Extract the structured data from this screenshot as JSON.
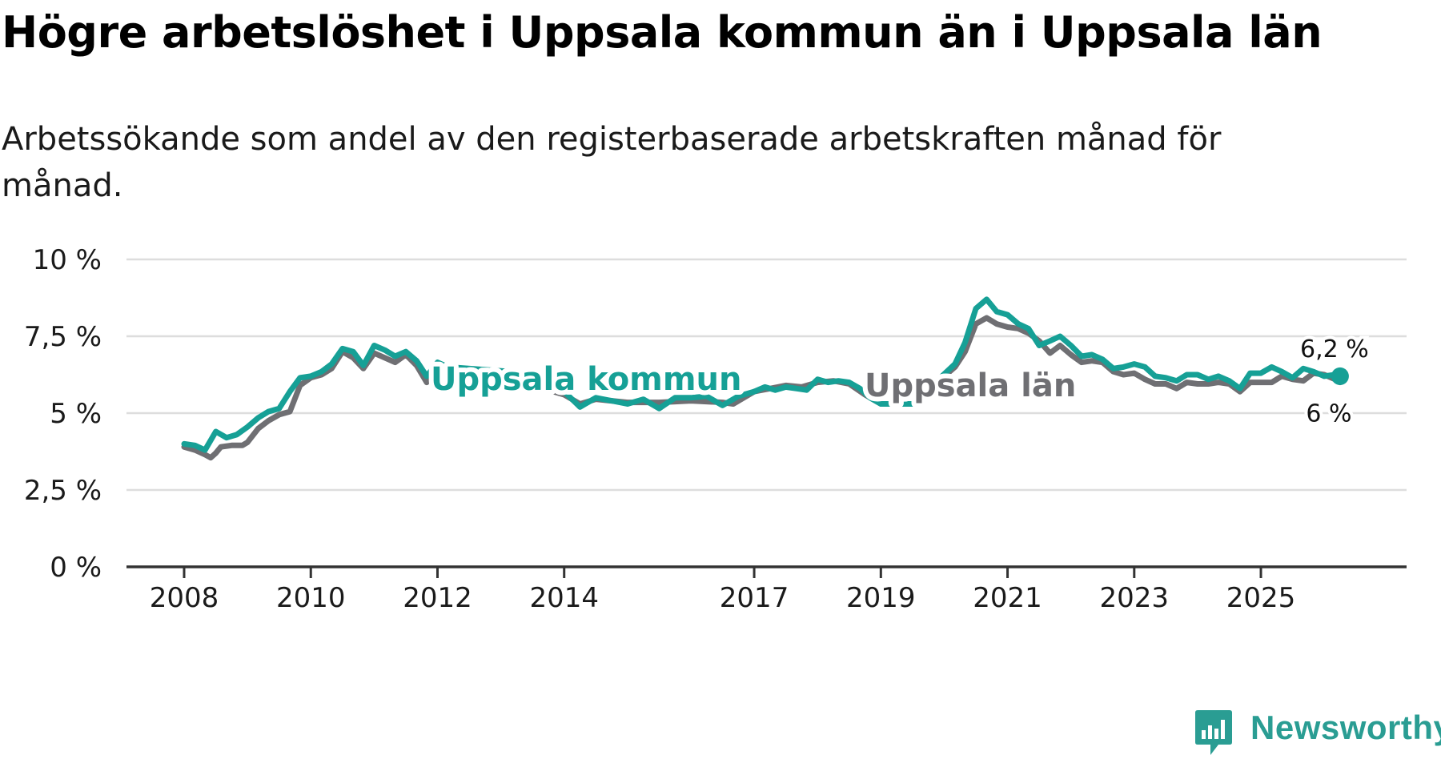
{
  "header": {
    "title": "Högre arbetslöshet i Uppsala kommun än i Uppsala län",
    "subtitle": "Arbetssökande som andel av den registerbaserade arbetskraften månad för månad."
  },
  "brand": {
    "name": "Newsworthy",
    "icon": "newsworthy-logo-icon"
  },
  "colors": {
    "kommun": "#16a096",
    "lan": "#6f6f73",
    "grid": "#dddddd",
    "axis": "#333333",
    "text": "#1a1a1a",
    "brand": "#2a9d93"
  },
  "chart_data": {
    "type": "line",
    "title": "Högre arbetslöshet i Uppsala kommun än i Uppsala län",
    "subtitle": "Arbetssökande som andel av den registerbaserade arbetskraften månad för månad.",
    "xlabel": "",
    "ylabel": "",
    "xlim": [
      2008.0,
      2026.75
    ],
    "ylim": [
      0,
      10
    ],
    "grid": true,
    "y_ticks": [
      {
        "value": 0,
        "label": "0 %"
      },
      {
        "value": 2.5,
        "label": "2,5 %"
      },
      {
        "value": 5,
        "label": "5 %"
      },
      {
        "value": 7.5,
        "label": "7,5 %"
      },
      {
        "value": 10,
        "label": "10 %"
      }
    ],
    "x_ticks": [
      {
        "value": 2008,
        "label": "2008"
      },
      {
        "value": 2010,
        "label": "2010"
      },
      {
        "value": 2012,
        "label": "2012"
      },
      {
        "value": 2014,
        "label": "2014"
      },
      {
        "value": 2017,
        "label": "2017"
      },
      {
        "value": 2019,
        "label": "2019"
      },
      {
        "value": 2021,
        "label": "2021"
      },
      {
        "value": 2023,
        "label": "2023"
      },
      {
        "value": 2025,
        "label": "2025"
      }
    ],
    "series": [
      {
        "name": "Uppsala län",
        "label": "Uppsala län",
        "end_label": "6 %",
        "points": [
          [
            2008.0,
            3.9
          ],
          [
            2008.17,
            3.8
          ],
          [
            2008.33,
            3.65
          ],
          [
            2008.42,
            3.55
          ],
          [
            2008.5,
            3.7
          ],
          [
            2008.58,
            3.9
          ],
          [
            2008.75,
            3.95
          ],
          [
            2008.92,
            3.95
          ],
          [
            2009.0,
            4.05
          ],
          [
            2009.17,
            4.5
          ],
          [
            2009.33,
            4.75
          ],
          [
            2009.5,
            4.95
          ],
          [
            2009.67,
            5.05
          ],
          [
            2009.83,
            5.9
          ],
          [
            2010.0,
            6.15
          ],
          [
            2010.17,
            6.25
          ],
          [
            2010.33,
            6.45
          ],
          [
            2010.5,
            7.0
          ],
          [
            2010.67,
            6.8
          ],
          [
            2010.83,
            6.45
          ],
          [
            2011.0,
            6.95
          ],
          [
            2011.17,
            6.8
          ],
          [
            2011.33,
            6.65
          ],
          [
            2011.5,
            6.9
          ],
          [
            2011.67,
            6.55
          ],
          [
            2011.83,
            6.0
          ],
          [
            2012.0,
            6.4
          ],
          [
            2012.17,
            6.15
          ],
          [
            2013.5,
            5.9
          ],
          [
            2014.0,
            5.6
          ],
          [
            2014.25,
            5.3
          ],
          [
            2014.5,
            5.45
          ],
          [
            2015.0,
            5.35
          ],
          [
            2015.5,
            5.35
          ],
          [
            2016.0,
            5.4
          ],
          [
            2016.5,
            5.35
          ],
          [
            2016.67,
            5.3
          ],
          [
            2017.0,
            5.7
          ],
          [
            2017.25,
            5.8
          ],
          [
            2017.5,
            5.9
          ],
          [
            2017.75,
            5.85
          ],
          [
            2018.0,
            6.0
          ],
          [
            2018.25,
            6.05
          ],
          [
            2018.5,
            5.95
          ],
          [
            2018.75,
            5.6
          ],
          [
            2019.0,
            5.3
          ],
          [
            2019.5,
            5.3
          ],
          [
            2020.17,
            6.5
          ],
          [
            2020.33,
            7.0
          ],
          [
            2020.5,
            7.9
          ],
          [
            2020.67,
            8.1
          ],
          [
            2020.83,
            7.9
          ],
          [
            2021.0,
            7.8
          ],
          [
            2021.17,
            7.75
          ],
          [
            2021.33,
            7.6
          ],
          [
            2021.5,
            7.35
          ],
          [
            2021.67,
            6.95
          ],
          [
            2021.83,
            7.2
          ],
          [
            2022.0,
            6.9
          ],
          [
            2022.17,
            6.65
          ],
          [
            2022.33,
            6.7
          ],
          [
            2022.5,
            6.65
          ],
          [
            2022.67,
            6.35
          ],
          [
            2022.83,
            6.25
          ],
          [
            2023.0,
            6.3
          ],
          [
            2023.17,
            6.1
          ],
          [
            2023.33,
            5.95
          ],
          [
            2023.5,
            5.95
          ],
          [
            2023.67,
            5.8
          ],
          [
            2023.83,
            6.0
          ],
          [
            2024.0,
            5.95
          ],
          [
            2024.17,
            5.95
          ],
          [
            2024.33,
            6.0
          ],
          [
            2024.5,
            5.95
          ],
          [
            2024.67,
            5.7
          ],
          [
            2024.83,
            6.0
          ],
          [
            2025.0,
            6.0
          ],
          [
            2025.17,
            6.0
          ],
          [
            2025.33,
            6.2
          ],
          [
            2025.5,
            6.1
          ],
          [
            2025.67,
            6.05
          ],
          [
            2025.83,
            6.3
          ],
          [
            2026.0,
            6.25
          ],
          [
            2026.17,
            6.1
          ],
          [
            2026.25,
            6.0
          ]
        ]
      },
      {
        "name": "Uppsala kommun",
        "label": "Uppsala kommun",
        "end_label": "6,2 %",
        "points": [
          [
            2008.0,
            4.0
          ],
          [
            2008.17,
            3.95
          ],
          [
            2008.33,
            3.8
          ],
          [
            2008.5,
            4.4
          ],
          [
            2008.67,
            4.2
          ],
          [
            2008.83,
            4.3
          ],
          [
            2009.0,
            4.55
          ],
          [
            2009.17,
            4.85
          ],
          [
            2009.33,
            5.05
          ],
          [
            2009.5,
            5.15
          ],
          [
            2009.67,
            5.7
          ],
          [
            2009.83,
            6.15
          ],
          [
            2010.0,
            6.2
          ],
          [
            2010.17,
            6.35
          ],
          [
            2010.33,
            6.6
          ],
          [
            2010.5,
            7.1
          ],
          [
            2010.67,
            7.0
          ],
          [
            2010.83,
            6.55
          ],
          [
            2011.0,
            7.2
          ],
          [
            2011.17,
            7.05
          ],
          [
            2011.33,
            6.85
          ],
          [
            2011.5,
            7.0
          ],
          [
            2011.67,
            6.7
          ],
          [
            2011.83,
            6.2
          ],
          [
            2012.0,
            6.65
          ],
          [
            2012.17,
            6.5
          ],
          [
            2013.5,
            6.3
          ],
          [
            2014.0,
            5.7
          ],
          [
            2014.25,
            5.2
          ],
          [
            2014.5,
            5.5
          ],
          [
            2014.75,
            5.4
          ],
          [
            2015.0,
            5.3
          ],
          [
            2015.25,
            5.45
          ],
          [
            2015.5,
            5.15
          ],
          [
            2015.75,
            5.5
          ],
          [
            2016.0,
            5.5
          ],
          [
            2016.25,
            5.55
          ],
          [
            2016.5,
            5.25
          ],
          [
            2016.75,
            5.55
          ],
          [
            2017.0,
            5.7
          ],
          [
            2017.17,
            5.85
          ],
          [
            2017.33,
            5.75
          ],
          [
            2017.5,
            5.85
          ],
          [
            2017.67,
            5.8
          ],
          [
            2017.83,
            5.75
          ],
          [
            2018.0,
            6.1
          ],
          [
            2018.17,
            6.0
          ],
          [
            2018.33,
            6.05
          ],
          [
            2018.5,
            6.0
          ],
          [
            2018.67,
            5.8
          ],
          [
            2018.83,
            5.5
          ],
          [
            2019.0,
            5.3
          ],
          [
            2019.5,
            5.3
          ],
          [
            2020.17,
            6.6
          ],
          [
            2020.33,
            7.3
          ],
          [
            2020.5,
            8.4
          ],
          [
            2020.67,
            8.7
          ],
          [
            2020.83,
            8.3
          ],
          [
            2021.0,
            8.2
          ],
          [
            2021.17,
            7.9
          ],
          [
            2021.33,
            7.75
          ],
          [
            2021.5,
            7.2
          ],
          [
            2021.67,
            7.35
          ],
          [
            2021.83,
            7.5
          ],
          [
            2022.0,
            7.2
          ],
          [
            2022.17,
            6.85
          ],
          [
            2022.33,
            6.9
          ],
          [
            2022.5,
            6.75
          ],
          [
            2022.67,
            6.45
          ],
          [
            2022.83,
            6.5
          ],
          [
            2023.0,
            6.6
          ],
          [
            2023.17,
            6.5
          ],
          [
            2023.33,
            6.2
          ],
          [
            2023.5,
            6.15
          ],
          [
            2023.67,
            6.05
          ],
          [
            2023.83,
            6.25
          ],
          [
            2024.0,
            6.25
          ],
          [
            2024.17,
            6.1
          ],
          [
            2024.33,
            6.2
          ],
          [
            2024.5,
            6.05
          ],
          [
            2024.67,
            5.8
          ],
          [
            2024.83,
            6.3
          ],
          [
            2025.0,
            6.3
          ],
          [
            2025.17,
            6.5
          ],
          [
            2025.33,
            6.35
          ],
          [
            2025.5,
            6.15
          ],
          [
            2025.67,
            6.45
          ],
          [
            2025.83,
            6.35
          ],
          [
            2026.0,
            6.2
          ],
          [
            2026.17,
            6.25
          ],
          [
            2026.25,
            6.2
          ]
        ]
      }
    ]
  }
}
